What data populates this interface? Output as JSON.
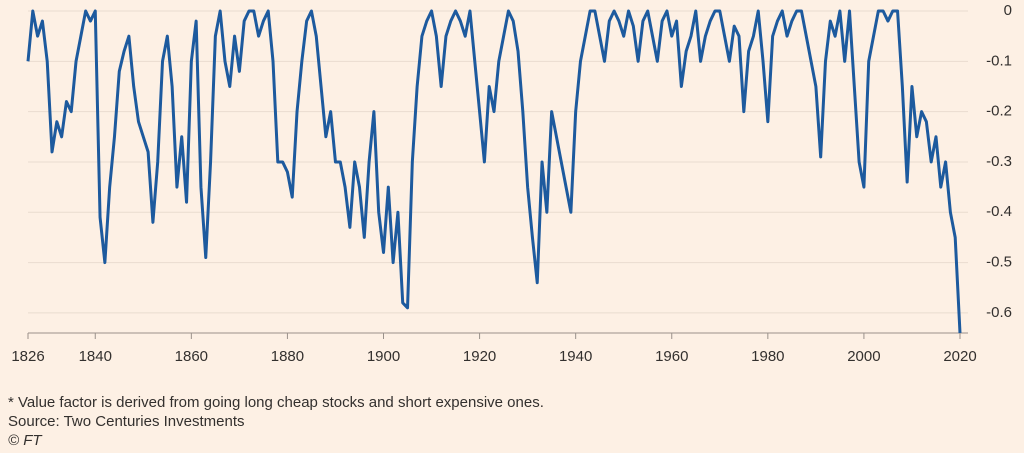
{
  "chart_data": {
    "type": "line",
    "footnote": "* Value factor is derived from going long cheap stocks and short expensive ones.",
    "source": "Source: Two Centuries Investments",
    "credit": "© FT",
    "x": [
      1826,
      1827,
      1828,
      1829,
      1830,
      1831,
      1832,
      1833,
      1834,
      1835,
      1836,
      1837,
      1838,
      1839,
      1840,
      1841,
      1842,
      1843,
      1844,
      1845,
      1846,
      1847,
      1848,
      1849,
      1850,
      1851,
      1852,
      1853,
      1854,
      1855,
      1856,
      1857,
      1858,
      1859,
      1860,
      1861,
      1862,
      1863,
      1864,
      1865,
      1866,
      1867,
      1868,
      1869,
      1870,
      1871,
      1872,
      1873,
      1874,
      1875,
      1876,
      1877,
      1878,
      1879,
      1880,
      1881,
      1882,
      1883,
      1884,
      1885,
      1886,
      1887,
      1888,
      1889,
      1890,
      1891,
      1892,
      1893,
      1894,
      1895,
      1896,
      1897,
      1898,
      1899,
      1900,
      1901,
      1902,
      1903,
      1904,
      1905,
      1906,
      1907,
      1908,
      1909,
      1910,
      1911,
      1912,
      1913,
      1914,
      1915,
      1916,
      1917,
      1918,
      1919,
      1920,
      1921,
      1922,
      1923,
      1924,
      1925,
      1926,
      1927,
      1928,
      1929,
      1930,
      1931,
      1932,
      1933,
      1934,
      1935,
      1936,
      1937,
      1938,
      1939,
      1940,
      1941,
      1942,
      1943,
      1944,
      1945,
      1946,
      1947,
      1948,
      1949,
      1950,
      1951,
      1952,
      1953,
      1954,
      1955,
      1956,
      1957,
      1958,
      1959,
      1960,
      1961,
      1962,
      1963,
      1964,
      1965,
      1966,
      1967,
      1968,
      1969,
      1970,
      1971,
      1972,
      1973,
      1974,
      1975,
      1976,
      1977,
      1978,
      1979,
      1980,
      1981,
      1982,
      1983,
      1984,
      1985,
      1986,
      1987,
      1988,
      1989,
      1990,
      1991,
      1992,
      1993,
      1994,
      1995,
      1996,
      1997,
      1998,
      1999,
      2000,
      2001,
      2002,
      2003,
      2004,
      2005,
      2006,
      2007,
      2008,
      2009,
      2010,
      2011,
      2012,
      2013,
      2014,
      2015,
      2016,
      2017,
      2018,
      2019,
      2020
    ],
    "series": [
      {
        "color": "#1d5a9e",
        "values": [
          -0.1,
          0,
          -0.05,
          -0.02,
          -0.1,
          -0.28,
          -0.22,
          -0.25,
          -0.18,
          -0.2,
          -0.1,
          -0.05,
          0,
          -0.02,
          0,
          -0.41,
          -0.5,
          -0.35,
          -0.25,
          -0.12,
          -0.08,
          -0.05,
          -0.15,
          -0.22,
          -0.25,
          -0.28,
          -0.42,
          -0.3,
          -0.1,
          -0.05,
          -0.15,
          -0.35,
          -0.25,
          -0.38,
          -0.1,
          -0.02,
          -0.35,
          -0.49,
          -0.3,
          -0.05,
          0,
          -0.1,
          -0.15,
          -0.05,
          -0.12,
          -0.02,
          0,
          0,
          -0.05,
          -0.02,
          0,
          -0.1,
          -0.3,
          -0.3,
          -0.32,
          -0.37,
          -0.2,
          -0.1,
          -0.02,
          0,
          -0.05,
          -0.15,
          -0.25,
          -0.2,
          -0.3,
          -0.3,
          -0.35,
          -0.43,
          -0.3,
          -0.35,
          -0.45,
          -0.3,
          -0.2,
          -0.4,
          -0.48,
          -0.35,
          -0.5,
          -0.4,
          -0.58,
          -0.59,
          -0.3,
          -0.15,
          -0.05,
          -0.02,
          0,
          -0.05,
          -0.15,
          -0.05,
          -0.02,
          0,
          -0.02,
          -0.05,
          0,
          -0.1,
          -0.2,
          -0.3,
          -0.15,
          -0.2,
          -0.1,
          -0.05,
          0,
          -0.02,
          -0.08,
          -0.2,
          -0.35,
          -0.45,
          -0.54,
          -0.3,
          -0.4,
          -0.2,
          -0.25,
          -0.3,
          -0.35,
          -0.4,
          -0.2,
          -0.1,
          -0.05,
          0,
          0,
          -0.05,
          -0.1,
          -0.02,
          0,
          -0.02,
          -0.05,
          0,
          -0.03,
          -0.1,
          -0.02,
          0,
          -0.05,
          -0.1,
          -0.02,
          0,
          -0.05,
          -0.02,
          -0.15,
          -0.08,
          -0.05,
          0,
          -0.1,
          -0.05,
          -0.02,
          0,
          0,
          -0.05,
          -0.1,
          -0.03,
          -0.05,
          -0.2,
          -0.08,
          -0.05,
          0,
          -0.1,
          -0.22,
          -0.05,
          -0.02,
          0,
          -0.05,
          -0.02,
          0,
          0,
          -0.05,
          -0.1,
          -0.15,
          -0.29,
          -0.1,
          -0.02,
          -0.05,
          0,
          -0.1,
          0,
          -0.15,
          -0.3,
          -0.35,
          -0.1,
          -0.05,
          0,
          0,
          -0.02,
          0,
          0,
          -0.15,
          -0.34,
          -0.15,
          -0.25,
          -0.2,
          -0.22,
          -0.3,
          -0.25,
          -0.35,
          -0.3,
          -0.4,
          -0.45,
          -0.64
        ]
      }
    ],
    "xlim": [
      1826,
      2020
    ],
    "xticks": [
      1826,
      1840,
      1860,
      1880,
      1900,
      1920,
      1940,
      1960,
      1980,
      2000,
      2020
    ],
    "ylim": [
      -0.64,
      0
    ],
    "yticks": [
      0,
      -0.1,
      -0.2,
      -0.3,
      -0.4,
      -0.5,
      -0.6
    ],
    "grid": true
  }
}
